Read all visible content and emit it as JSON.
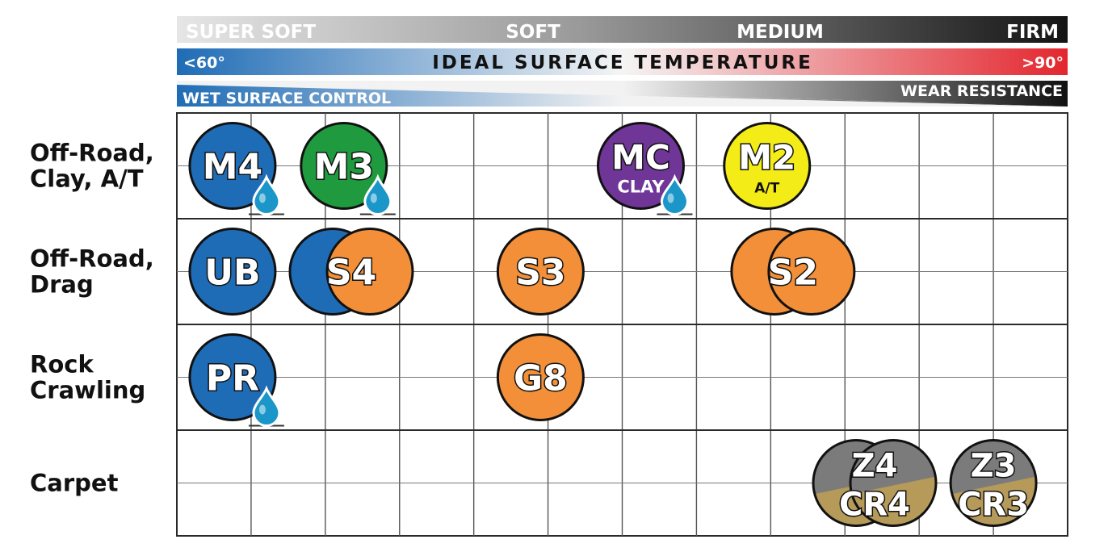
{
  "colors": {
    "blue": "#1f6cb6",
    "green": "#1f9a3e",
    "purple": "#6f3597",
    "yellow": "#f4ec17",
    "orange": "#f28f38",
    "gray": "#7b7b7b",
    "gold": "#b59a5a",
    "red": "#e3262e",
    "drop": "#1b96c9"
  },
  "chart_data": {
    "type": "table",
    "hardness_scale": [
      "SUPER SOFT",
      "SOFT",
      "MEDIUM",
      "FIRM"
    ],
    "temperature": {
      "low": "<60°",
      "label": "IDEAL SURFACE TEMPERATURE",
      "high": ">90°"
    },
    "wet_label": "WET SURFACE CONTROL",
    "wear_label": "WEAR RESISTANCE",
    "columns": 12,
    "rows": [
      {
        "label": [
          "Off-Road,",
          "Clay, A/T"
        ]
      },
      {
        "label": [
          "Off-Road,",
          "Drag"
        ]
      },
      {
        "label": [
          "Rock",
          "Crawling"
        ]
      },
      {
        "label": [
          "Carpet"
        ]
      }
    ],
    "compounds": [
      {
        "row": 0,
        "col": 0.75,
        "name": "M4",
        "color": "blue",
        "wet": true
      },
      {
        "row": 0,
        "col": 2.25,
        "name": "M3",
        "color": "green",
        "wet": true
      },
      {
        "row": 0,
        "col": 6.25,
        "name": "MC",
        "sub": "CLAY",
        "color": "purple",
        "wet": true
      },
      {
        "row": 0,
        "col": 7.95,
        "name": "M2",
        "sub": "A/T",
        "color": "yellow"
      },
      {
        "row": 1,
        "col": 0.75,
        "name": "UB",
        "color": "blue"
      },
      {
        "row": 1,
        "col": 2.6,
        "name": "S4",
        "color": "orange",
        "overlap": "blue"
      },
      {
        "row": 1,
        "col": 4.9,
        "name": "S3",
        "color": "orange"
      },
      {
        "row": 1,
        "col": 8.55,
        "name": "S2",
        "color": "orange",
        "overlap": "orange"
      },
      {
        "row": 2,
        "col": 0.75,
        "name": "PR",
        "color": "blue",
        "wet": true
      },
      {
        "row": 2,
        "col": 4.9,
        "name": "G8",
        "color": "orange"
      },
      {
        "row": 3,
        "col": 9.65,
        "name": "Z4",
        "sub": "CR4",
        "color": "gray",
        "overlap": "gray",
        "split": true
      },
      {
        "row": 3,
        "col": 11.0,
        "name": "Z3",
        "sub": "CR3",
        "color": "gray",
        "split": true
      }
    ]
  }
}
